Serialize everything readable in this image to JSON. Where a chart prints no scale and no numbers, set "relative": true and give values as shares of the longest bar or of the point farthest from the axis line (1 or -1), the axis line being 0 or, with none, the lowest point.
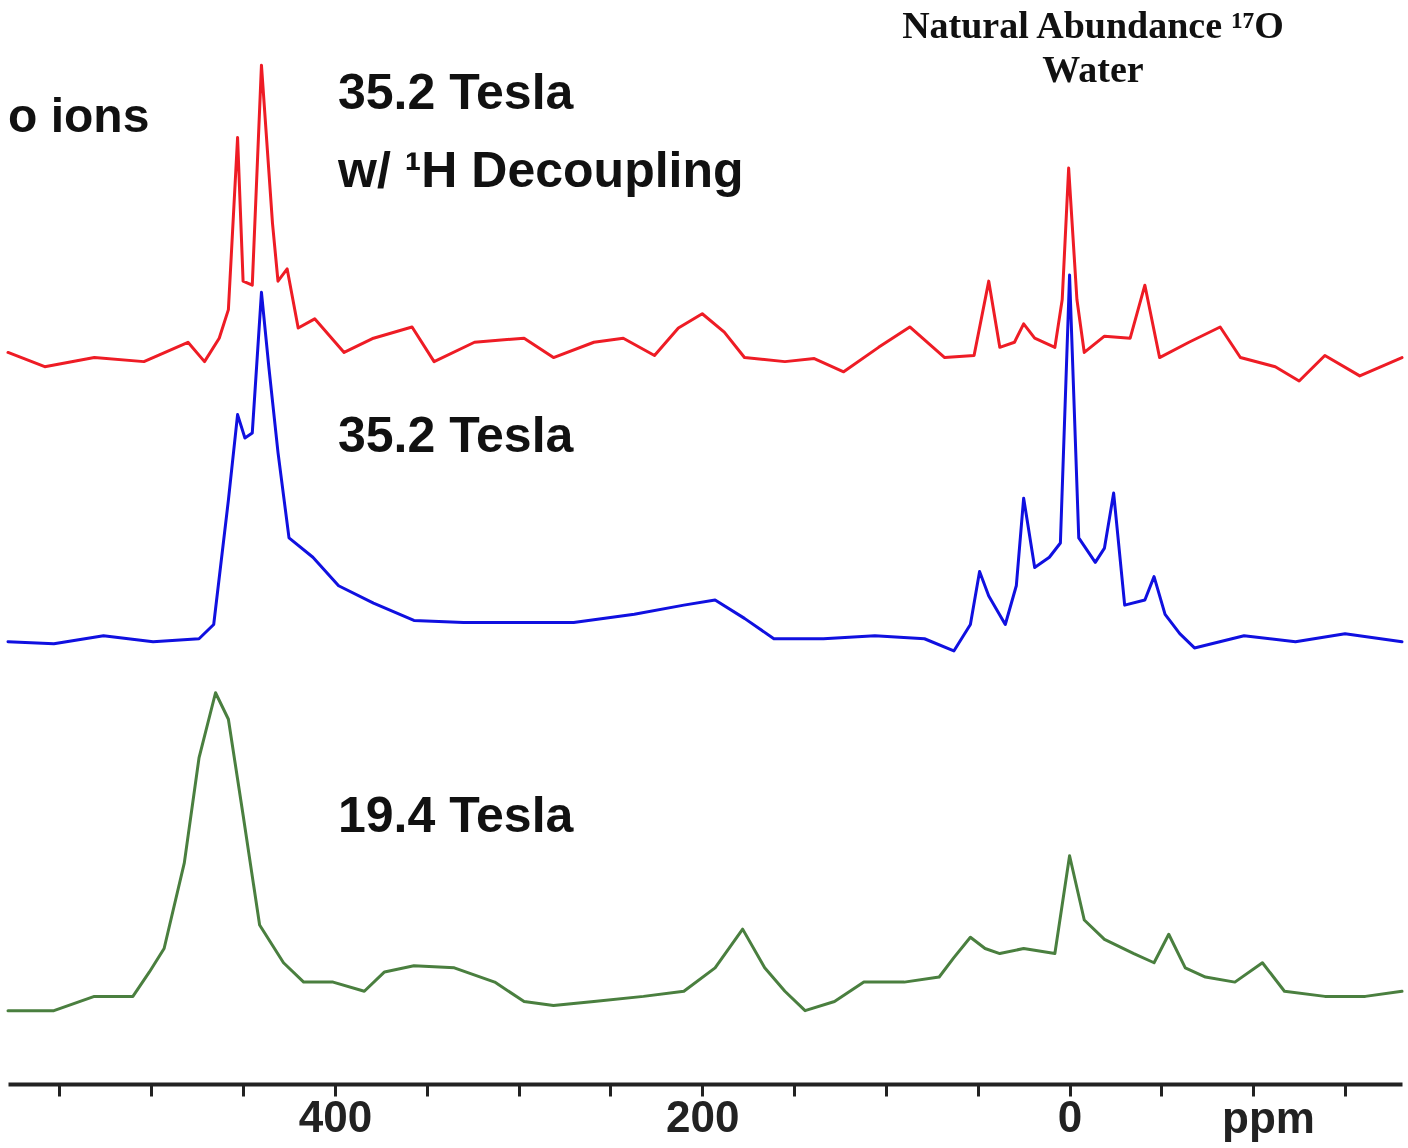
{
  "chart_data": {
    "type": "line",
    "relative": true,
    "xlabel": "ppm",
    "annotations": [
      "35.2 Tesla",
      "w/ ¹H Decoupling",
      "35.2 Tesla",
      "19.4 Tesla",
      "Natural Abundance ¹⁷O",
      "Water",
      "o ions"
    ],
    "xlim": [
      578,
      -181
    ],
    "xticks": [
      {
        "value": 550,
        "label": null
      },
      {
        "value": 500,
        "label": null
      },
      {
        "value": 450,
        "label": null
      },
      400,
      {
        "value": 350,
        "label": null
      },
      {
        "value": 300,
        "label": null
      },
      {
        "value": 250,
        "label": null
      },
      200,
      {
        "value": 150,
        "label": null
      },
      {
        "value": 100,
        "label": null
      },
      {
        "value": 50,
        "label": null
      },
      0,
      {
        "value": -50,
        "label": null
      },
      {
        "value": -100,
        "label": null
      },
      {
        "value": -150,
        "label": null
      }
    ],
    "grid": false,
    "legend": false,
    "line_style": "solid",
    "series": [
      {
        "color": "#ee1c25",
        "x": [
          578,
          558,
          531,
          504,
          480,
          471,
          463,
          458,
          453,
          450,
          445,
          440,
          434,
          431,
          426,
          420,
          411,
          395,
          379,
          358,
          346,
          324,
          297,
          281,
          259,
          243,
          226,
          213,
          200,
          188,
          177,
          155,
          139,
          123,
          104,
          87,
          68,
          52,
          44,
          38,
          30,
          25,
          19,
          8,
          4,
          0.5,
          -4,
          -8,
          -19,
          -33,
          -41,
          -49,
          -65,
          -82,
          -93,
          -112,
          -125,
          -139,
          -158,
          -181
        ],
        "values": [
          0.718,
          0.704,
          0.713,
          0.709,
          0.728,
          0.709,
          0.732,
          0.76,
          0.929,
          0.788,
          0.784,
          1.0,
          0.845,
          0.788,
          0.8,
          0.742,
          0.751,
          0.718,
          0.732,
          0.743,
          0.709,
          0.728,
          0.732,
          0.713,
          0.728,
          0.732,
          0.715,
          0.742,
          0.756,
          0.738,
          0.713,
          0.709,
          0.712,
          0.699,
          0.723,
          0.743,
          0.713,
          0.715,
          0.788,
          0.723,
          0.728,
          0.746,
          0.732,
          0.723,
          0.77,
          0.899,
          0.77,
          0.718,
          0.734,
          0.732,
          0.784,
          0.713,
          0.728,
          0.743,
          0.713,
          0.704,
          0.69,
          0.715,
          0.695,
          0.713
        ]
      },
      {
        "color": "#1010e0",
        "x": [
          578,
          553,
          526,
          499,
          474,
          466,
          458,
          453,
          449,
          445,
          440,
          436,
          431,
          425,
          412,
          398,
          379,
          357,
          330,
          302,
          270,
          237,
          210,
          193,
          177,
          161,
          134,
          106,
          79,
          63,
          54,
          49,
          44,
          35,
          29,
          25,
          19,
          11,
          5,
          0,
          -5,
          -14,
          -19,
          -24,
          -30,
          -41,
          -46,
          -52,
          -60,
          -68,
          -95,
          -123,
          -150,
          -181
        ],
        "values": [
          0.434,
          0.432,
          0.44,
          0.434,
          0.437,
          0.451,
          0.573,
          0.657,
          0.634,
          0.639,
          0.777,
          0.704,
          0.62,
          0.536,
          0.517,
          0.489,
          0.472,
          0.455,
          0.453,
          0.453,
          0.453,
          0.461,
          0.47,
          0.475,
          0.457,
          0.437,
          0.437,
          0.44,
          0.437,
          0.425,
          0.451,
          0.503,
          0.479,
          0.451,
          0.489,
          0.575,
          0.507,
          0.517,
          0.531,
          0.794,
          0.536,
          0.512,
          0.526,
          0.58,
          0.47,
          0.475,
          0.498,
          0.461,
          0.442,
          0.428,
          0.44,
          0.434,
          0.442,
          0.434
        ]
      },
      {
        "color": "#4a7f3f",
        "x": [
          578,
          553,
          531,
          510,
          501,
          493,
          482,
          474,
          465,
          458,
          450,
          441,
          428,
          417,
          401,
          384,
          373,
          357,
          335,
          313,
          297,
          281,
          259,
          232,
          210,
          193,
          178,
          166,
          155,
          144,
          128,
          112,
          90,
          71,
          63,
          54,
          46,
          38,
          25,
          8,
          0,
          -8,
          -19,
          -35,
          -46,
          -54,
          -63,
          -74,
          -90,
          -105,
          -117,
          -139,
          -161,
          -181
        ],
        "values": [
          0.072,
          0.072,
          0.086,
          0.086,
          0.11,
          0.133,
          0.217,
          0.32,
          0.384,
          0.358,
          0.264,
          0.156,
          0.119,
          0.1,
          0.1,
          0.091,
          0.11,
          0.116,
          0.114,
          0.1,
          0.081,
          0.077,
          0.081,
          0.086,
          0.091,
          0.114,
          0.152,
          0.114,
          0.091,
          0.072,
          0.081,
          0.1,
          0.1,
          0.105,
          0.124,
          0.144,
          0.133,
          0.128,
          0.133,
          0.128,
          0.224,
          0.161,
          0.142,
          0.128,
          0.119,
          0.147,
          0.114,
          0.105,
          0.1,
          0.119,
          0.091,
          0.086,
          0.086,
          0.091
        ]
      }
    ]
  }
}
